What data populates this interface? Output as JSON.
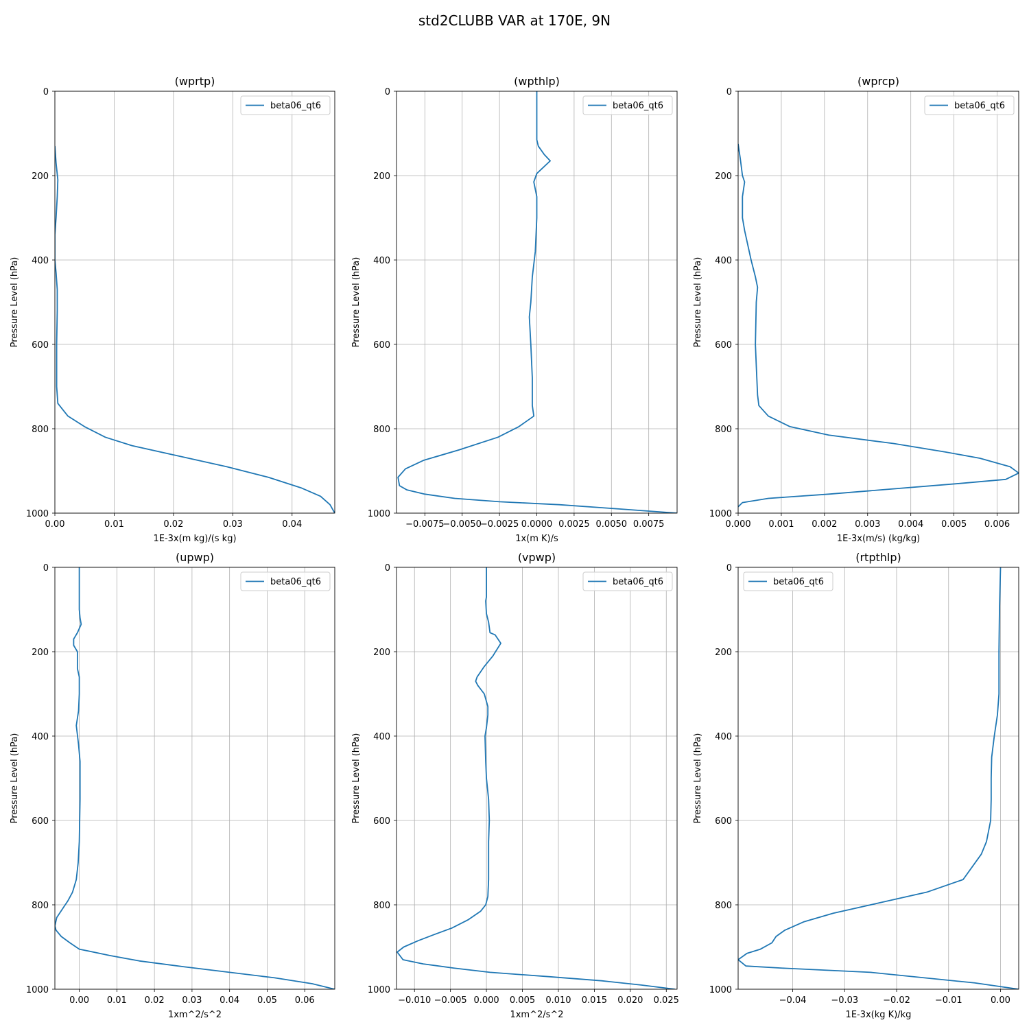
{
  "figure": {
    "title": "std2CLUBB VAR at 170E, 9N"
  },
  "chart_data": [
    {
      "type": "line",
      "title": "(wprtp)",
      "xlabel": "1E-3x(m kg)/(s kg)",
      "ylabel": "Pressure Level (hPa)",
      "xlim": [
        0,
        0.0472
      ],
      "ylim": [
        1000,
        0
      ],
      "xticks": [
        "0.00",
        "0.01",
        "0.02",
        "0.03",
        "0.04"
      ],
      "yticks": [
        "0",
        "200",
        "400",
        "600",
        "800",
        "1000"
      ],
      "grid": true,
      "legend": "upper right",
      "series": [
        {
          "name": "beta06_qt6",
          "color": "#1f77b4",
          "x": [
            0.0,
            0.0002,
            0.0005,
            0.0004,
            0.0002,
            0.0,
            0.0,
            0.0002,
            0.0004,
            0.0004,
            0.0003,
            0.0003,
            0.0005,
            0.0022,
            0.005,
            0.0085,
            0.013,
            0.021,
            0.029,
            0.036,
            0.0415,
            0.0448,
            0.0464,
            0.0472
          ],
          "y": [
            130,
            170,
            210,
            250,
            300,
            340,
            400,
            430,
            470,
            520,
            600,
            700,
            740,
            770,
            795,
            820,
            840,
            865,
            890,
            915,
            940,
            960,
            980,
            1000
          ]
        }
      ]
    },
    {
      "type": "line",
      "title": "(wpthlp)",
      "xlabel": "1x(m K)/s",
      "ylabel": "Pressure Level (hPa)",
      "xlim": [
        -0.0094,
        0.0094
      ],
      "ylim": [
        1000,
        0
      ],
      "xticks": [
        "−0.0075",
        "−0.0050",
        "−0.0025",
        "0.0000",
        "0.0025",
        "0.0050",
        "0.0075"
      ],
      "yticks": [
        "0",
        "200",
        "400",
        "600",
        "800",
        "1000"
      ],
      "grid": true,
      "legend": "upper right",
      "series": [
        {
          "name": "beta06_qt6",
          "color": "#1f77b4",
          "x": [
            0.0,
            0.0,
            0.0,
            0.0,
            0.0001,
            0.0005,
            0.0009,
            0.0,
            -0.0002,
            0.0,
            0.0,
            -0.0001,
            -0.0003,
            -0.0004,
            -0.0005,
            -0.0004,
            -0.0003,
            -0.0003,
            -0.0002,
            -0.0012,
            -0.0026,
            -0.0052,
            -0.0076,
            -0.0088,
            -0.0093,
            -0.0092,
            -0.0087,
            -0.0075,
            -0.0055,
            -0.0025,
            0.0015,
            0.0055,
            0.0094
          ],
          "y": [
            0,
            50,
            100,
            115,
            130,
            150,
            165,
            195,
            215,
            250,
            300,
            380,
            440,
            500,
            535,
            600,
            680,
            745,
            770,
            795,
            820,
            850,
            875,
            895,
            915,
            935,
            945,
            955,
            965,
            973,
            980,
            990,
            1000
          ]
        }
      ]
    },
    {
      "type": "line",
      "title": "(wprcp)",
      "xlabel": "1E-3x(m/s) (kg/kg)",
      "ylabel": "Pressure Level (hPa)",
      "xlim": [
        0,
        0.0065
      ],
      "ylim": [
        1000,
        0
      ],
      "xticks": [
        "0.000",
        "0.001",
        "0.002",
        "0.003",
        "0.004",
        "0.005",
        "0.006"
      ],
      "yticks": [
        "0",
        "200",
        "400",
        "600",
        "800",
        "1000"
      ],
      "grid": true,
      "legend": "upper right",
      "series": [
        {
          "name": "beta06_qt6",
          "color": "#1f77b4",
          "x": [
            0.0,
            5e-05,
            0.0001,
            0.00015,
            0.0001,
            0.0001,
            0.00015,
            0.0003,
            0.0004,
            0.00045,
            0.00042,
            0.0004,
            0.00042,
            0.00045,
            0.00048,
            0.0007,
            0.0012,
            0.0021,
            0.0036,
            0.0048,
            0.0056,
            0.0063,
            0.0065,
            0.0062,
            0.0051,
            0.0021,
            0.0007,
            0.0001,
            0.0
          ],
          "y": [
            125,
            160,
            200,
            215,
            250,
            300,
            330,
            400,
            440,
            465,
            500,
            600,
            650,
            720,
            745,
            770,
            795,
            815,
            835,
            855,
            870,
            890,
            905,
            920,
            930,
            955,
            965,
            975,
            985
          ]
        }
      ]
    },
    {
      "type": "line",
      "title": "(upwp)",
      "xlabel": "1xm^2/s^2",
      "ylabel": "Pressure Level (hPa)",
      "xlim": [
        -0.0065,
        0.068
      ],
      "ylim": [
        1000,
        0
      ],
      "xticks": [
        "0.00",
        "0.01",
        "0.02",
        "0.03",
        "0.04",
        "0.05",
        "0.06"
      ],
      "yticks": [
        "0",
        "200",
        "400",
        "600",
        "800",
        "1000"
      ],
      "grid": true,
      "legend": "upper right",
      "series": [
        {
          "name": "beta06_qt6",
          "color": "#1f77b4",
          "x": [
            0.0,
            0.0,
            0.0002,
            0.0005,
            -0.0005,
            -0.0015,
            -0.0015,
            -0.0005,
            -0.0005,
            0.0,
            0.0,
            -0.0002,
            -0.0008,
            -0.0002,
            0.0002,
            0.0002,
            0.0,
            -0.0003,
            -0.0008,
            -0.0018,
            -0.003,
            -0.0045,
            -0.006,
            -0.0065,
            -0.0062,
            -0.0048,
            -0.0025,
            0.0,
            0.008,
            0.016,
            0.028,
            0.04,
            0.052,
            0.062,
            0.068
          ],
          "y": [
            0,
            100,
            120,
            135,
            155,
            170,
            185,
            200,
            240,
            260,
            300,
            340,
            375,
            420,
            460,
            550,
            650,
            700,
            740,
            770,
            790,
            810,
            830,
            850,
            860,
            875,
            890,
            905,
            920,
            933,
            947,
            960,
            973,
            987,
            1000
          ]
        }
      ]
    },
    {
      "type": "line",
      "title": "(vpwp)",
      "xlabel": "1xm^2/s^2",
      "ylabel": "Pressure Level (hPa)",
      "xlim": [
        -0.0125,
        0.0265
      ],
      "ylim": [
        1000,
        0
      ],
      "xticks": [
        "−0.010",
        "−0.005",
        "0.000",
        "0.005",
        "0.010",
        "0.015",
        "0.020",
        "0.025"
      ],
      "yticks": [
        "0",
        "200",
        "400",
        "600",
        "800",
        "1000"
      ],
      "grid": true,
      "legend": "upper right",
      "series": [
        {
          "name": "beta06_qt6",
          "color": "#1f77b4",
          "x": [
            0.0,
            0.0,
            -0.0001,
            0.0,
            0.0003,
            0.0005,
            0.0012,
            0.002,
            0.0009,
            -0.0003,
            -0.0013,
            -0.0015,
            -0.0012,
            -0.0003,
            0.0002,
            0.0002,
            0.0,
            -0.0002,
            -0.0001,
            0.0,
            0.0003,
            0.0004,
            0.0003,
            0.0003,
            0.0002,
            -0.0001,
            -0.0008,
            -0.0025,
            -0.0048,
            -0.0072,
            -0.0095,
            -0.0115,
            -0.0124,
            -0.0116,
            -0.0088,
            -0.0045,
            0.0005,
            0.0085,
            0.016,
            0.0215,
            0.0262
          ],
          "y": [
            0,
            70,
            80,
            110,
            130,
            155,
            160,
            180,
            210,
            235,
            260,
            270,
            280,
            300,
            330,
            350,
            380,
            400,
            460,
            500,
            550,
            600,
            650,
            740,
            780,
            800,
            815,
            835,
            855,
            870,
            885,
            900,
            912,
            930,
            940,
            950,
            960,
            970,
            980,
            990,
            1000
          ]
        }
      ]
    },
    {
      "type": "line",
      "title": "(rtpthlp)",
      "xlabel": "1E-3x(kg K)/kg",
      "ylabel": "Pressure Level (hPa)",
      "xlim": [
        -0.0505,
        0.0035
      ],
      "ylim": [
        1000,
        0
      ],
      "xticks": [
        "−0.04",
        "−0.03",
        "−0.02",
        "−0.01",
        "0.00"
      ],
      "yticks": [
        "0",
        "200",
        "400",
        "600",
        "800",
        "1000"
      ],
      "grid": true,
      "legend": "upper left",
      "series": [
        {
          "name": "beta06_qt6",
          "color": "#1f77b4",
          "x": [
            0.0,
            -0.0002,
            -0.0003,
            -0.0003,
            -0.0006,
            -0.0012,
            -0.0017,
            -0.0018,
            -0.0018,
            -0.0019,
            -0.0027,
            -0.0037,
            -0.0072,
            -0.0142,
            -0.0232,
            -0.0322,
            -0.0378,
            -0.0415,
            -0.0432,
            -0.044,
            -0.0462,
            -0.0488,
            -0.0505,
            -0.049,
            -0.042,
            -0.025,
            -0.005,
            0.0035
          ],
          "y": [
            0,
            100,
            200,
            300,
            350,
            400,
            450,
            500,
            550,
            600,
            650,
            680,
            740,
            770,
            795,
            820,
            840,
            860,
            875,
            890,
            905,
            915,
            930,
            945,
            950,
            960,
            985,
            1000
          ]
        }
      ]
    }
  ]
}
